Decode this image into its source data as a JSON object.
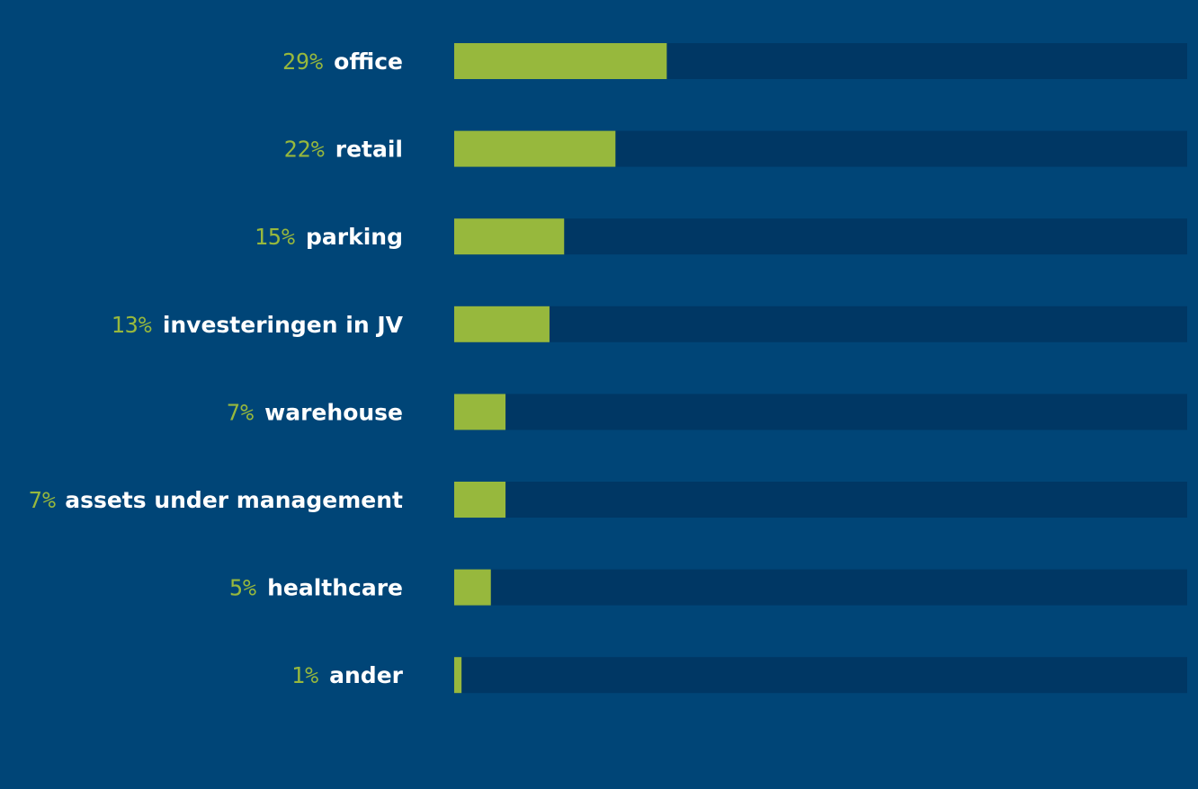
{
  "chart_data": {
    "type": "bar",
    "orientation": "horizontal",
    "categories": [
      "office",
      "retail",
      "parking",
      "investeringen in JV",
      "warehouse",
      "assets under management",
      "healthcare",
      "ander"
    ],
    "values": [
      29,
      22,
      15,
      13,
      7,
      7,
      5,
      1
    ],
    "value_labels": [
      "29%",
      "22%",
      "15%",
      "13%",
      "7%",
      "7%",
      "5%",
      "1%"
    ],
    "unit": "%",
    "xlim": [
      0,
      100
    ],
    "grid": false,
    "legend": "none",
    "colors": {
      "background": "#004577",
      "track": "#003764",
      "bar": "#97b83d",
      "value_text": "#97b83d",
      "label_text": "#ffffff"
    }
  }
}
